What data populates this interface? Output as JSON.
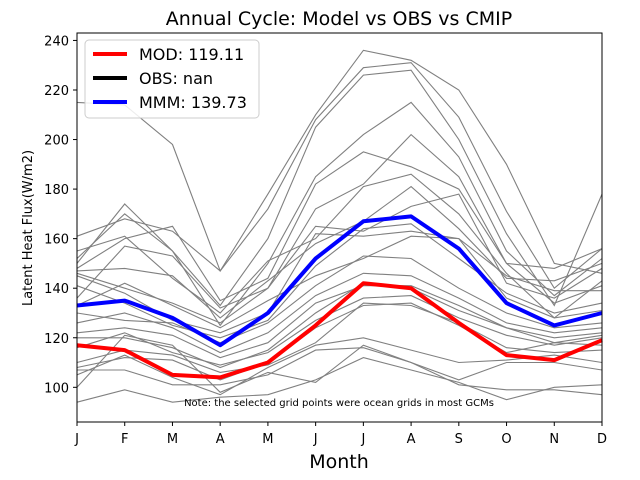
{
  "chart_data": {
    "type": "line",
    "title": "Annual Cycle: Model vs OBS vs CMIP",
    "xlabel": "Month",
    "ylabel": "Latent Heat Flux(W/m2)",
    "x": [
      "J",
      "F",
      "M",
      "A",
      "M",
      "J",
      "J",
      "A",
      "S",
      "O",
      "N",
      "D"
    ],
    "ylim": [
      86,
      243
    ],
    "yticks": [
      100,
      120,
      140,
      160,
      180,
      200,
      220,
      240
    ],
    "note": "Note: the selected grid points were ocean grids in most GCMs",
    "legend": {
      "placement": "top-left",
      "entries": [
        {
          "label": "MOD: 119.11",
          "color": "#ff0000"
        },
        {
          "label": "OBS: nan",
          "color": "#000000"
        },
        {
          "label": "MMM: 139.73",
          "color": "#0000ff"
        }
      ]
    },
    "series": [
      {
        "name": "MOD",
        "color": "#ff0000",
        "values": [
          117,
          115,
          105,
          104,
          110,
          125,
          142,
          140,
          126,
          113,
          111,
          119
        ]
      },
      {
        "name": "MMM",
        "color": "#0000ff",
        "values": [
          133,
          135,
          128,
          117,
          130,
          152,
          167,
          169,
          156,
          134,
          125,
          130
        ]
      }
    ],
    "cmip_models": [
      {
        "color": "#808080",
        "values": [
          215,
          214,
          198,
          147,
          178,
          210,
          236,
          232,
          220,
          190,
          150,
          146
        ]
      },
      {
        "color": "#808080",
        "values": [
          161,
          168,
          163,
          147,
          172,
          208,
          229,
          231,
          209,
          171,
          140,
          156
        ]
      },
      {
        "color": "#808080",
        "values": [
          152,
          170,
          155,
          133,
          160,
          205,
          226,
          228,
          200,
          162,
          133,
          178
        ]
      },
      {
        "color": "#808080",
        "values": [
          150,
          174,
          155,
          125,
          150,
          185,
          202,
          215,
          193,
          155,
          137,
          152
        ]
      },
      {
        "color": "#808080",
        "values": [
          148,
          160,
          165,
          135,
          144,
          182,
          195,
          189,
          180,
          150,
          148,
          156
        ]
      },
      {
        "color": "#808080",
        "values": [
          136,
          157,
          153,
          132,
          140,
          172,
          182,
          202,
          185,
          150,
          134,
          141
        ]
      },
      {
        "color": "#808080",
        "values": [
          155,
          161,
          144,
          130,
          151,
          160,
          181,
          186,
          170,
          146,
          128,
          143
        ]
      },
      {
        "color": "#808080",
        "values": [
          147,
          148,
          145,
          128,
          143,
          158,
          167,
          181,
          164,
          144,
          143,
          150
        ]
      },
      {
        "color": "#808080",
        "values": [
          146,
          140,
          134,
          126,
          140,
          165,
          163,
          173,
          178,
          142,
          136,
          148
        ]
      },
      {
        "color": "#808080",
        "values": [
          145,
          138,
          127,
          122,
          130,
          162,
          161,
          163,
          160,
          145,
          139,
          139
        ]
      },
      {
        "color": "#808080",
        "values": [
          141,
          134,
          125,
          120,
          127,
          149,
          164,
          166,
          152,
          138,
          130,
          134
        ]
      },
      {
        "color": "#808080",
        "values": [
          133,
          142,
          133,
          124,
          135,
          145,
          152,
          161,
          160,
          136,
          128,
          131
        ]
      },
      {
        "color": "#808080",
        "values": [
          130,
          127,
          126,
          118,
          126,
          141,
          153,
          152,
          140,
          130,
          124,
          126
        ]
      },
      {
        "color": "#808080",
        "values": [
          126,
          130,
          124,
          114,
          122,
          137,
          146,
          145,
          136,
          126,
          122,
          124
        ]
      },
      {
        "color": "#808080",
        "values": [
          122,
          124,
          121,
          112,
          118,
          134,
          141,
          141,
          133,
          124,
          120,
          122
        ]
      },
      {
        "color": "#808080",
        "values": [
          120,
          120,
          116,
          108,
          115,
          130,
          142,
          140,
          131,
          124,
          118,
          121
        ]
      },
      {
        "color": "#808080",
        "values": [
          116,
          122,
          114,
          109,
          114,
          127,
          136,
          137,
          128,
          121,
          117,
          120
        ]
      },
      {
        "color": "#808080",
        "values": [
          110,
          115,
          113,
          106,
          109,
          118,
          134,
          133,
          126,
          116,
          114,
          115
        ]
      },
      {
        "color": "#808080",
        "values": [
          108,
          112,
          111,
          103,
          110,
          124,
          133,
          134,
          125,
          114,
          118,
          117
        ]
      },
      {
        "color": "#808080",
        "values": [
          105,
          113,
          104,
          97,
          108,
          117,
          120,
          115,
          110,
          111,
          113,
          110
        ]
      },
      {
        "color": "#808080",
        "values": [
          107,
          107,
          101,
          101,
          105,
          115,
          116,
          110,
          103,
          110,
          110,
          107
        ]
      },
      {
        "color": "#808080",
        "values": [
          94,
          99,
          94,
          96,
          97,
          103,
          112,
          107,
          102,
          95,
          100,
          101
        ]
      },
      {
        "color": "#808080",
        "values": [
          100,
          121,
          117,
          98,
          106,
          102,
          117,
          110,
          101,
          99,
          99,
          97
        ]
      }
    ]
  }
}
